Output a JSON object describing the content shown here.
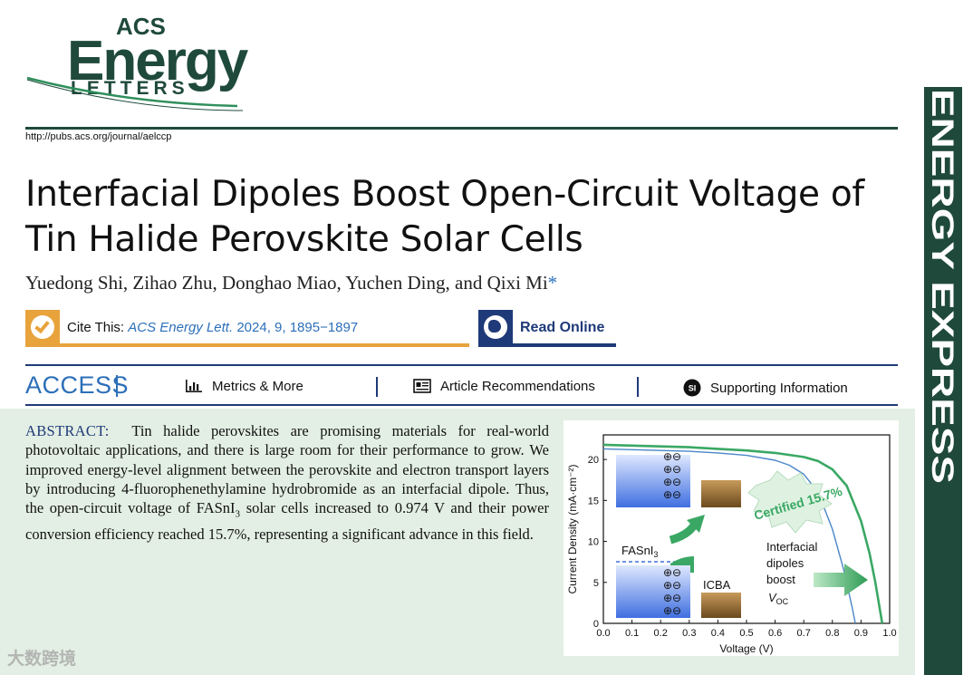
{
  "journal": {
    "logo_acs": "ACS",
    "logo_energy": "Energy",
    "logo_letters": "LETTERS",
    "url": "http://pubs.acs.org/journal/aelccp",
    "banner": "ENERGY EXPRESS",
    "brand_color": "#1f4a3b"
  },
  "article": {
    "title": "Interfacial Dipoles Boost Open-Circuit Voltage of Tin Halide Perovskite Solar Cells",
    "authors": "Yuedong Shi, Zihao Zhu, Donghao Miao, Yuchen Ding, and Qixi Mi",
    "corresponding_mark": "*"
  },
  "cite": {
    "label": "Cite This:",
    "journal": "ACS Energy Lett.",
    "rest": " 2024, 9, 1895−1897",
    "icon": "check-icon",
    "color": "#e8a33c"
  },
  "read_online": {
    "label": "Read Online",
    "icon": "globe-icon",
    "color": "#1f3a78"
  },
  "access_bar": {
    "access": "ACCESS",
    "metrics": "Metrics & More",
    "recommendations": "Article Recommendations",
    "supporting": "Supporting Information",
    "si_badge": "SI"
  },
  "abstract": {
    "label": "ABSTRACT:",
    "text_1": "Tin halide perovskites are promising materials for real-world photovoltaic applications, and there is large room for their performance to grow. We improved energy-level alignment between the perovskite and electron transport layers by introducing 4-fluorophenethylamine hydrobromide as an interfacial dipole. Thus, the open-circuit voltage of FASnI",
    "sub_3": "3",
    "text_2": " solar cells increased to 0.974 V and their power conversion efficiency reached 15.7%, representing a significant advance in this field."
  },
  "toc": {
    "label_fasni": "FASnI",
    "label_fasni_sub": "3",
    "label_icba": "ICBA",
    "label_certified": "Certified 15.7%",
    "label_dipoles_1": "Interfacial",
    "label_dipoles_2": "dipoles",
    "label_dipoles_3": "boost",
    "label_voc": "V",
    "label_voc_sub": "OC",
    "dipole_glyphs": "⊕⊖"
  },
  "chart_data": {
    "type": "line",
    "xlabel": "Voltage (V)",
    "ylabel": "Current Density (mA·cm⁻²)",
    "xlim": [
      0.0,
      1.0
    ],
    "ylim": [
      0,
      23
    ],
    "x_ticks": [
      "0.0",
      "0.1",
      "0.2",
      "0.3",
      "0.4",
      "0.5",
      "0.6",
      "0.7",
      "0.8",
      "0.9",
      "1.0"
    ],
    "y_ticks": [
      "0",
      "5",
      "10",
      "15",
      "20"
    ],
    "series": [
      {
        "color": "#4a86c8",
        "x": [
          0.0,
          0.1,
          0.2,
          0.3,
          0.4,
          0.5,
          0.6,
          0.65,
          0.7,
          0.75,
          0.8,
          0.84,
          0.87,
          0.88
        ],
        "y": [
          21.3,
          21.2,
          21.1,
          21.0,
          20.8,
          20.5,
          19.9,
          19.3,
          18.2,
          16.0,
          11.5,
          6.5,
          1.8,
          0.0
        ]
      },
      {
        "color": "#3aa864",
        "x": [
          0.0,
          0.1,
          0.2,
          0.3,
          0.4,
          0.5,
          0.6,
          0.7,
          0.75,
          0.8,
          0.85,
          0.9,
          0.93,
          0.95,
          0.974
        ],
        "y": [
          21.8,
          21.7,
          21.6,
          21.5,
          21.3,
          21.1,
          20.8,
          20.3,
          19.8,
          18.8,
          16.8,
          12.5,
          8.5,
          5.0,
          0.0
        ]
      }
    ]
  },
  "watermark": "大数跨境"
}
